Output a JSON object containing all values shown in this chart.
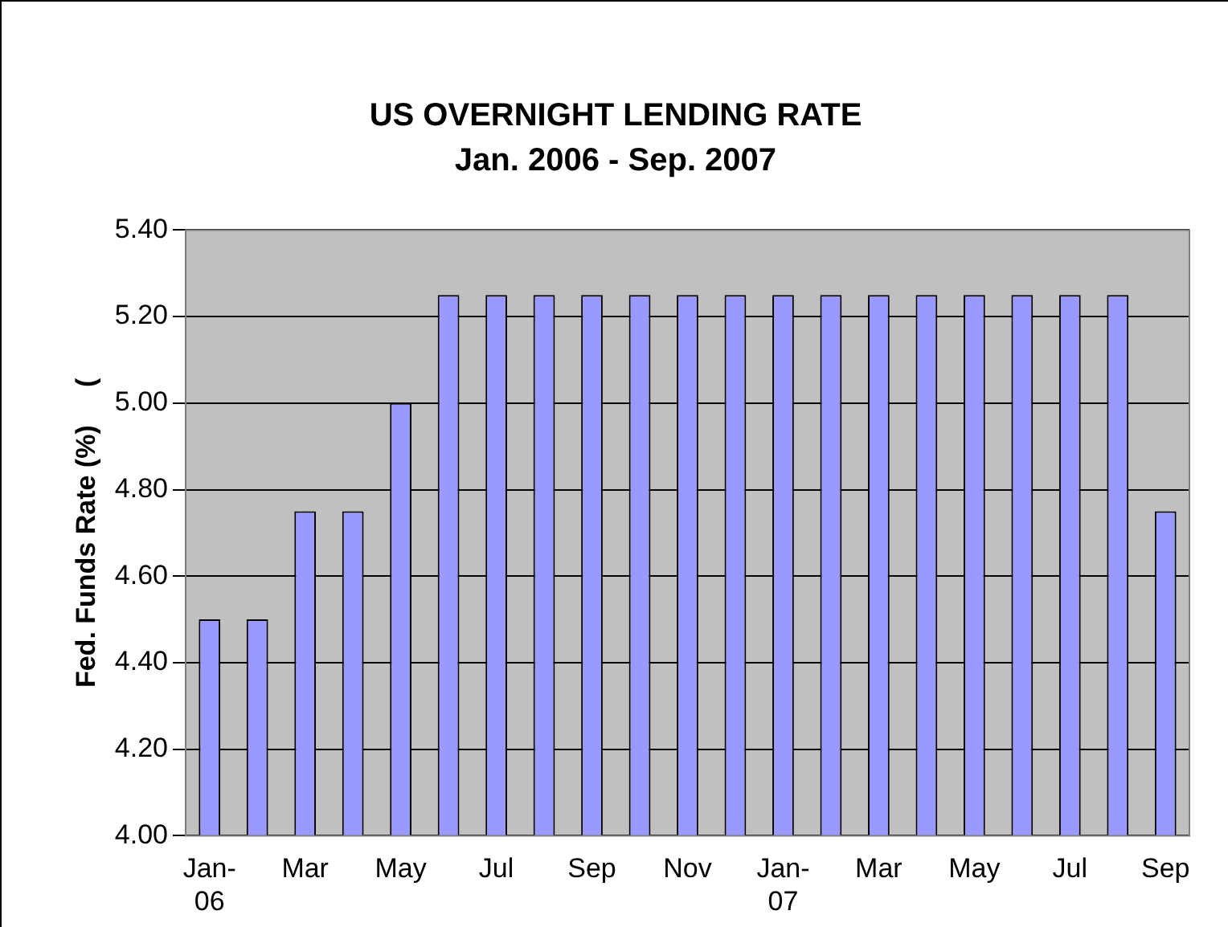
{
  "chart_data": {
    "type": "bar",
    "title": "US OVERNIGHT LENDING RATE",
    "subtitle": "Jan. 2006 - Sep. 2007",
    "ylabel": "Fed. Funds Rate (%)     (",
    "categories": [
      "Jan-06",
      null,
      "Mar",
      null,
      "May",
      null,
      "Jul",
      null,
      "Sep",
      null,
      "Nov",
      null,
      "Jan-07",
      null,
      "Mar",
      null,
      "May",
      null,
      "Jul",
      null,
      "Sep"
    ],
    "values": [
      4.5,
      4.5,
      4.75,
      4.75,
      5.0,
      5.25,
      5.25,
      5.25,
      5.25,
      5.25,
      5.25,
      5.25,
      5.25,
      5.25,
      5.25,
      5.25,
      5.25,
      5.25,
      5.25,
      5.25,
      4.75
    ],
    "color": "#9999ff",
    "ylim": [
      4.0,
      5.4
    ],
    "yticks": [
      {
        "value": 4.0,
        "label": "4.00"
      },
      {
        "value": 4.2,
        "label": "4.20"
      },
      {
        "value": 4.4,
        "label": "4.40"
      },
      {
        "value": 4.6,
        "label": "4.60"
      },
      {
        "value": 4.8,
        "label": "4.80"
      },
      {
        "value": 5.0,
        "label": "5.00"
      },
      {
        "value": 5.2,
        "label": "5.20"
      },
      {
        "value": 5.4,
        "label": "5.40"
      }
    ],
    "grid": "y",
    "legend": false
  }
}
